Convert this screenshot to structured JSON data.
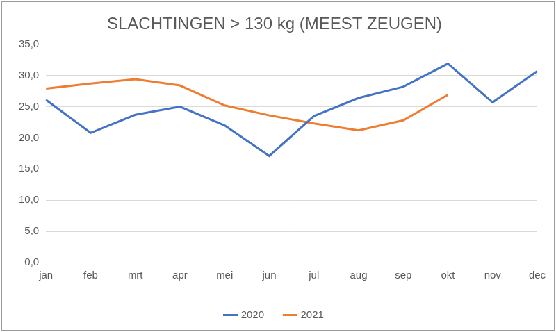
{
  "chart_data": {
    "type": "line",
    "title": "SLACHTINGEN > 130 kg (MEEST ZEUGEN)",
    "categories": [
      "jan",
      "feb",
      "mrt",
      "apr",
      "mei",
      "jun",
      "jul",
      "aug",
      "sep",
      "okt",
      "nov",
      "dec"
    ],
    "series": [
      {
        "name": "2020",
        "color": "#4472c4",
        "values": [
          26.1,
          20.8,
          23.7,
          25.0,
          22.0,
          17.1,
          23.5,
          26.4,
          28.2,
          31.9,
          25.7,
          30.7
        ]
      },
      {
        "name": "2021",
        "color": "#ed7d31",
        "values": [
          27.9,
          28.7,
          29.4,
          28.4,
          25.2,
          23.6,
          22.3,
          21.2,
          22.8,
          26.9,
          null,
          null
        ]
      }
    ],
    "ylim": [
      0,
      35
    ],
    "yticks": [
      {
        "value": 0,
        "label": "0,0"
      },
      {
        "value": 5,
        "label": "5,0"
      },
      {
        "value": 10,
        "label": "10,0"
      },
      {
        "value": 15,
        "label": "15,0"
      },
      {
        "value": 20,
        "label": "20,0"
      },
      {
        "value": 25,
        "label": "25,0"
      },
      {
        "value": 30,
        "label": "30,0"
      },
      {
        "value": 35,
        "label": "35,0"
      }
    ],
    "grid": true,
    "legend": "bottom"
  }
}
